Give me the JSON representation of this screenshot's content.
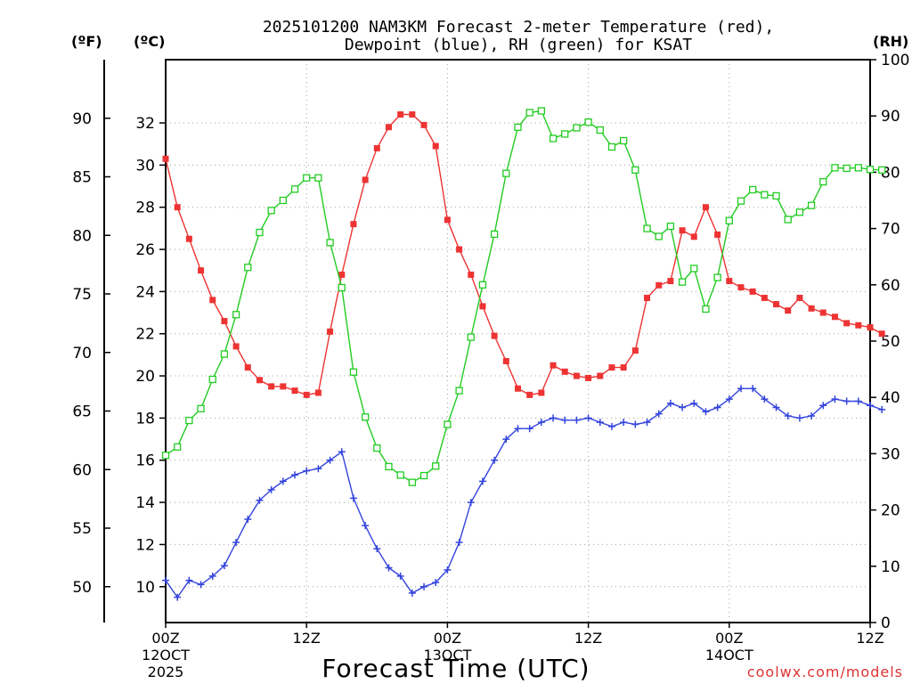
{
  "chart_data": {
    "type": "line",
    "title_line1": "2025101200 NAM3KM Forecast 2-meter Temperature (red),",
    "title_line2": "Dewpoint (blue), RH (green) for KSAT",
    "xlabel": "Forecast Time (UTC)",
    "watermark": "coolwx.com/models",
    "unit_f": "(ºF)",
    "unit_c": "(ºC)",
    "unit_rh": "(RH)",
    "x_range": [
      0,
      60
    ],
    "c_range": [
      8.3,
      35.0
    ],
    "rh_range": [
      0,
      100
    ],
    "x_ticks": [
      {
        "hour": 0,
        "line1": "00Z",
        "line2": "12OCT",
        "line3": "2025"
      },
      {
        "hour": 12,
        "line1": "12Z",
        "line2": "",
        "line3": ""
      },
      {
        "hour": 24,
        "line1": "00Z",
        "line2": "13OCT",
        "line3": ""
      },
      {
        "hour": 36,
        "line1": "12Z",
        "line2": "",
        "line3": ""
      },
      {
        "hour": 48,
        "line1": "00Z",
        "line2": "14OCT",
        "line3": ""
      },
      {
        "hour": 60,
        "line1": "12Z",
        "line2": "",
        "line3": ""
      }
    ],
    "c_ticks": [
      "10",
      "12",
      "14",
      "16",
      "18",
      "20",
      "22",
      "24",
      "26",
      "28",
      "30",
      "32"
    ],
    "f_ticks": [
      "50",
      "55",
      "60",
      "65",
      "70",
      "75",
      "80",
      "85",
      "90"
    ],
    "rh_ticks": [
      "0",
      "10",
      "20",
      "30",
      "40",
      "50",
      "60",
      "70",
      "80",
      "90",
      "100"
    ],
    "series": [
      {
        "name": "Temperature",
        "color": "#ee3333",
        "marker": "filled-square",
        "values": [
          30.3,
          28.0,
          26.5,
          25.0,
          23.6,
          22.6,
          21.4,
          20.4,
          19.8,
          19.5,
          19.5,
          19.3,
          19.1,
          19.2,
          22.1,
          24.8,
          27.2,
          29.3,
          30.8,
          31.8,
          32.4,
          32.4,
          31.9,
          30.9,
          27.4,
          26.0,
          24.8,
          23.3,
          21.9,
          20.7,
          19.4,
          19.1,
          19.2,
          20.5,
          20.2,
          20.0,
          19.9,
          20.0,
          20.4,
          20.4,
          21.2,
          23.7,
          24.3,
          24.5,
          26.9,
          26.6,
          28.0,
          26.7,
          24.5,
          24.2,
          24.0,
          23.7,
          23.4,
          23.1,
          23.7,
          23.2,
          23.0,
          22.8,
          22.5,
          22.4,
          22.3,
          22.0
        ]
      },
      {
        "name": "Dewpoint",
        "color": "#3344dd",
        "marker": "plus",
        "values": [
          10.3,
          9.5,
          10.3,
          10.1,
          10.5,
          11.0,
          12.1,
          13.2,
          14.1,
          14.6,
          15.0,
          15.3,
          15.5,
          15.6,
          16.0,
          16.4,
          14.2,
          12.9,
          11.8,
          10.9,
          10.5,
          9.7,
          10.0,
          10.2,
          10.8,
          12.1,
          14.0,
          15.0,
          16.0,
          17.0,
          17.5,
          17.5,
          17.8,
          18.0,
          17.9,
          17.9,
          18.0,
          17.8,
          17.6,
          17.8,
          17.7,
          17.8,
          18.2,
          18.7,
          18.5,
          18.7,
          18.3,
          18.5,
          18.9,
          19.4,
          19.4,
          18.9,
          18.5,
          18.1,
          18.0,
          18.1,
          18.6,
          18.9,
          18.8,
          18.8,
          18.6,
          18.4
        ]
      },
      {
        "name": "RH",
        "color": "#22cc22",
        "marker": "open-square",
        "values": [
          29.7,
          31.2,
          35.9,
          38.0,
          43.2,
          47.7,
          54.7,
          63.1,
          69.3,
          73.2,
          75.0,
          77.0,
          79.0,
          79.0,
          67.5,
          59.5,
          44.5,
          36.5,
          31.0,
          27.7,
          26.2,
          24.9,
          26.1,
          27.8,
          35.2,
          41.2,
          50.7,
          60.0,
          69.0,
          79.8,
          88.0,
          90.6,
          90.9,
          86.0,
          86.8,
          87.9,
          88.9,
          87.5,
          84.5,
          85.6,
          80.4,
          70.0,
          68.6,
          70.4,
          60.5,
          62.9,
          55.7,
          61.3,
          71.4,
          74.9,
          76.9,
          76.0,
          75.8,
          71.6,
          72.9,
          74.1,
          78.3,
          80.8,
          80.7,
          80.8,
          80.5,
          80.4
        ]
      }
    ]
  }
}
